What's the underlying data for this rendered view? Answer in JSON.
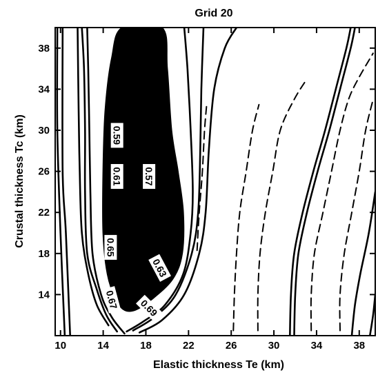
{
  "chart_data": {
    "type": "contour",
    "title": "Grid 20",
    "xlabel": "Elastic thickness Te (km)",
    "ylabel": "Crustal thickness Tc (km)",
    "xlim": [
      9.5,
      39.5
    ],
    "ylim": [
      10,
      40
    ],
    "xticks": [
      10,
      14,
      18,
      22,
      26,
      30,
      34,
      38
    ],
    "yticks": [
      14,
      18,
      22,
      26,
      30,
      34,
      38
    ],
    "filled_region": {
      "outline": [
        [
          16.0,
          12.5
        ],
        [
          15.2,
          13.5
        ],
        [
          14.4,
          16
        ],
        [
          14.0,
          20
        ],
        [
          14.0,
          26
        ],
        [
          14.2,
          32
        ],
        [
          14.8,
          37
        ],
        [
          15.8,
          40
        ],
        [
          19.5,
          40
        ],
        [
          20.0,
          36
        ],
        [
          20.4,
          30
        ],
        [
          21.0,
          26
        ],
        [
          21.5,
          22
        ],
        [
          21.4,
          18
        ],
        [
          20.5,
          15.5
        ],
        [
          18.5,
          13.5
        ],
        [
          17.0,
          12.5
        ]
      ]
    },
    "contours": [
      {
        "style": "solid",
        "points": [
          [
            16.0,
            10.2
          ],
          [
            14.8,
            11.8
          ],
          [
            13.8,
            14
          ],
          [
            13.0,
            18
          ],
          [
            12.8,
            24
          ],
          [
            12.7,
            30
          ],
          [
            12.6,
            36
          ],
          [
            12.5,
            40
          ]
        ]
      },
      {
        "style": "solid",
        "points": [
          [
            15.3,
            10.4
          ],
          [
            14.3,
            12
          ],
          [
            13.4,
            14.5
          ],
          [
            12.5,
            18
          ],
          [
            12.3,
            24
          ],
          [
            12.3,
            30
          ],
          [
            12.2,
            36
          ],
          [
            12.0,
            40
          ]
        ]
      },
      {
        "style": "solid",
        "points": [
          [
            14.5,
            11
          ],
          [
            13.4,
            13
          ],
          [
            12.6,
            16
          ],
          [
            12.0,
            20
          ],
          [
            11.8,
            26
          ],
          [
            11.7,
            32
          ],
          [
            11.6,
            40
          ]
        ]
      },
      {
        "style": "solid",
        "points": [
          [
            10.9,
            10
          ],
          [
            10.5,
            20
          ],
          [
            10.2,
            26
          ],
          [
            10.2,
            40
          ]
        ]
      },
      {
        "style": "solid",
        "points": [
          [
            10.4,
            10
          ],
          [
            10.0,
            20
          ],
          [
            9.7,
            30
          ],
          [
            9.7,
            40
          ]
        ]
      },
      {
        "style": "solid",
        "points": [
          [
            16.2,
            10.4
          ],
          [
            17.8,
            11.4
          ],
          [
            19.8,
            13
          ],
          [
            21.5,
            16
          ],
          [
            22.2,
            20
          ],
          [
            22.4,
            24
          ],
          [
            22.2,
            30
          ],
          [
            21.9,
            36
          ],
          [
            21.6,
            40
          ]
        ]
      },
      {
        "style": "solid",
        "points": [
          [
            16.8,
            10.5
          ],
          [
            18.8,
            11.8
          ],
          [
            20.8,
            14
          ],
          [
            22.3,
            18
          ],
          [
            22.9,
            22
          ],
          [
            23.1,
            28
          ],
          [
            23.2,
            34
          ],
          [
            23.4,
            40
          ]
        ]
      },
      {
        "style": "solid",
        "points": [
          [
            17.4,
            10.3
          ],
          [
            19.5,
            11.5
          ],
          [
            21.6,
            14
          ],
          [
            23.0,
            18
          ],
          [
            23.6,
            22
          ],
          [
            23.9,
            28
          ],
          [
            24.4,
            34
          ],
          [
            25.4,
            38
          ],
          [
            26.5,
            40
          ]
        ]
      },
      {
        "style": "solid",
        "points": [
          [
            31.5,
            10
          ],
          [
            31.6,
            14
          ],
          [
            31.9,
            18
          ],
          [
            32.7,
            22
          ],
          [
            33.7,
            26
          ],
          [
            34.8,
            30
          ],
          [
            35.8,
            34
          ],
          [
            36.8,
            38
          ],
          [
            37.2,
            40
          ]
        ]
      },
      {
        "style": "solid",
        "points": [
          [
            31.9,
            10
          ],
          [
            32.0,
            14
          ],
          [
            32.3,
            18
          ],
          [
            33.1,
            22
          ],
          [
            34.1,
            26
          ],
          [
            35.2,
            30
          ],
          [
            36.2,
            34
          ],
          [
            37.2,
            38
          ],
          [
            37.6,
            40
          ]
        ]
      },
      {
        "style": "solid",
        "points": [
          [
            37.3,
            10
          ],
          [
            37.6,
            13
          ],
          [
            38.1,
            16
          ],
          [
            38.9,
            20
          ],
          [
            39.5,
            24
          ]
        ]
      },
      {
        "style": "solid",
        "points": [
          [
            39.0,
            10
          ],
          [
            39.3,
            12
          ],
          [
            39.5,
            14
          ]
        ]
      },
      {
        "style": "dashed",
        "points": [
          [
            22.8,
            18.3
          ],
          [
            23.0,
            22
          ],
          [
            23.3,
            26
          ],
          [
            23.5,
            30
          ],
          [
            23.7,
            32.5
          ]
        ]
      },
      {
        "style": "dashed",
        "points": [
          [
            26.2,
            10.5
          ],
          [
            26.3,
            14
          ],
          [
            26.5,
            18
          ],
          [
            26.8,
            22
          ],
          [
            27.4,
            26
          ],
          [
            28.0,
            30
          ],
          [
            28.6,
            32.5
          ]
        ]
      },
      {
        "style": "dashed",
        "points": [
          [
            28.5,
            10.5
          ],
          [
            28.5,
            14
          ],
          [
            28.7,
            18
          ],
          [
            29.2,
            22
          ],
          [
            29.9,
            26
          ],
          [
            30.6,
            30
          ],
          [
            31.9,
            33
          ],
          [
            33.1,
            35
          ]
        ]
      },
      {
        "style": "dashed",
        "points": [
          [
            33.5,
            10.5
          ],
          [
            33.5,
            14
          ],
          [
            33.8,
            18
          ],
          [
            34.6,
            22
          ],
          [
            35.4,
            26
          ],
          [
            36.2,
            30
          ],
          [
            37.0,
            33
          ],
          [
            37.9,
            35
          ],
          [
            39.3,
            37.5
          ]
        ]
      },
      {
        "style": "dashed",
        "points": [
          [
            36.2,
            10.5
          ],
          [
            36.2,
            14
          ],
          [
            36.6,
            18
          ],
          [
            37.3,
            22
          ],
          [
            38.0,
            26
          ],
          [
            38.6,
            30
          ],
          [
            39.3,
            33
          ]
        ]
      }
    ],
    "contour_labels": [
      {
        "text": "0.59",
        "x": 15.3,
        "y": 29.5,
        "rotation": 90,
        "bg": "#ffffff"
      },
      {
        "text": "0.61",
        "x": 15.3,
        "y": 25.5,
        "rotation": 90,
        "bg": "#ffffff"
      },
      {
        "text": "0.57",
        "x": 18.3,
        "y": 25.5,
        "rotation": 90,
        "bg": "#ffffff"
      },
      {
        "text": "0.65",
        "x": 14.7,
        "y": 18.6,
        "rotation": 90,
        "bg": "#ffffff"
      },
      {
        "text": "0.63",
        "x": 19.3,
        "y": 16.6,
        "rotation": 62,
        "bg": "#ffffff"
      },
      {
        "text": "0.67",
        "x": 14.8,
        "y": 13.5,
        "rotation": 75,
        "bg": "#ffffff"
      },
      {
        "text": "0.69",
        "x": 18.3,
        "y": 12.7,
        "rotation": 45,
        "bg": "#ffffff"
      }
    ],
    "colors": {
      "line": "#000000",
      "fill": "#000000",
      "background": "#ffffff"
    }
  }
}
